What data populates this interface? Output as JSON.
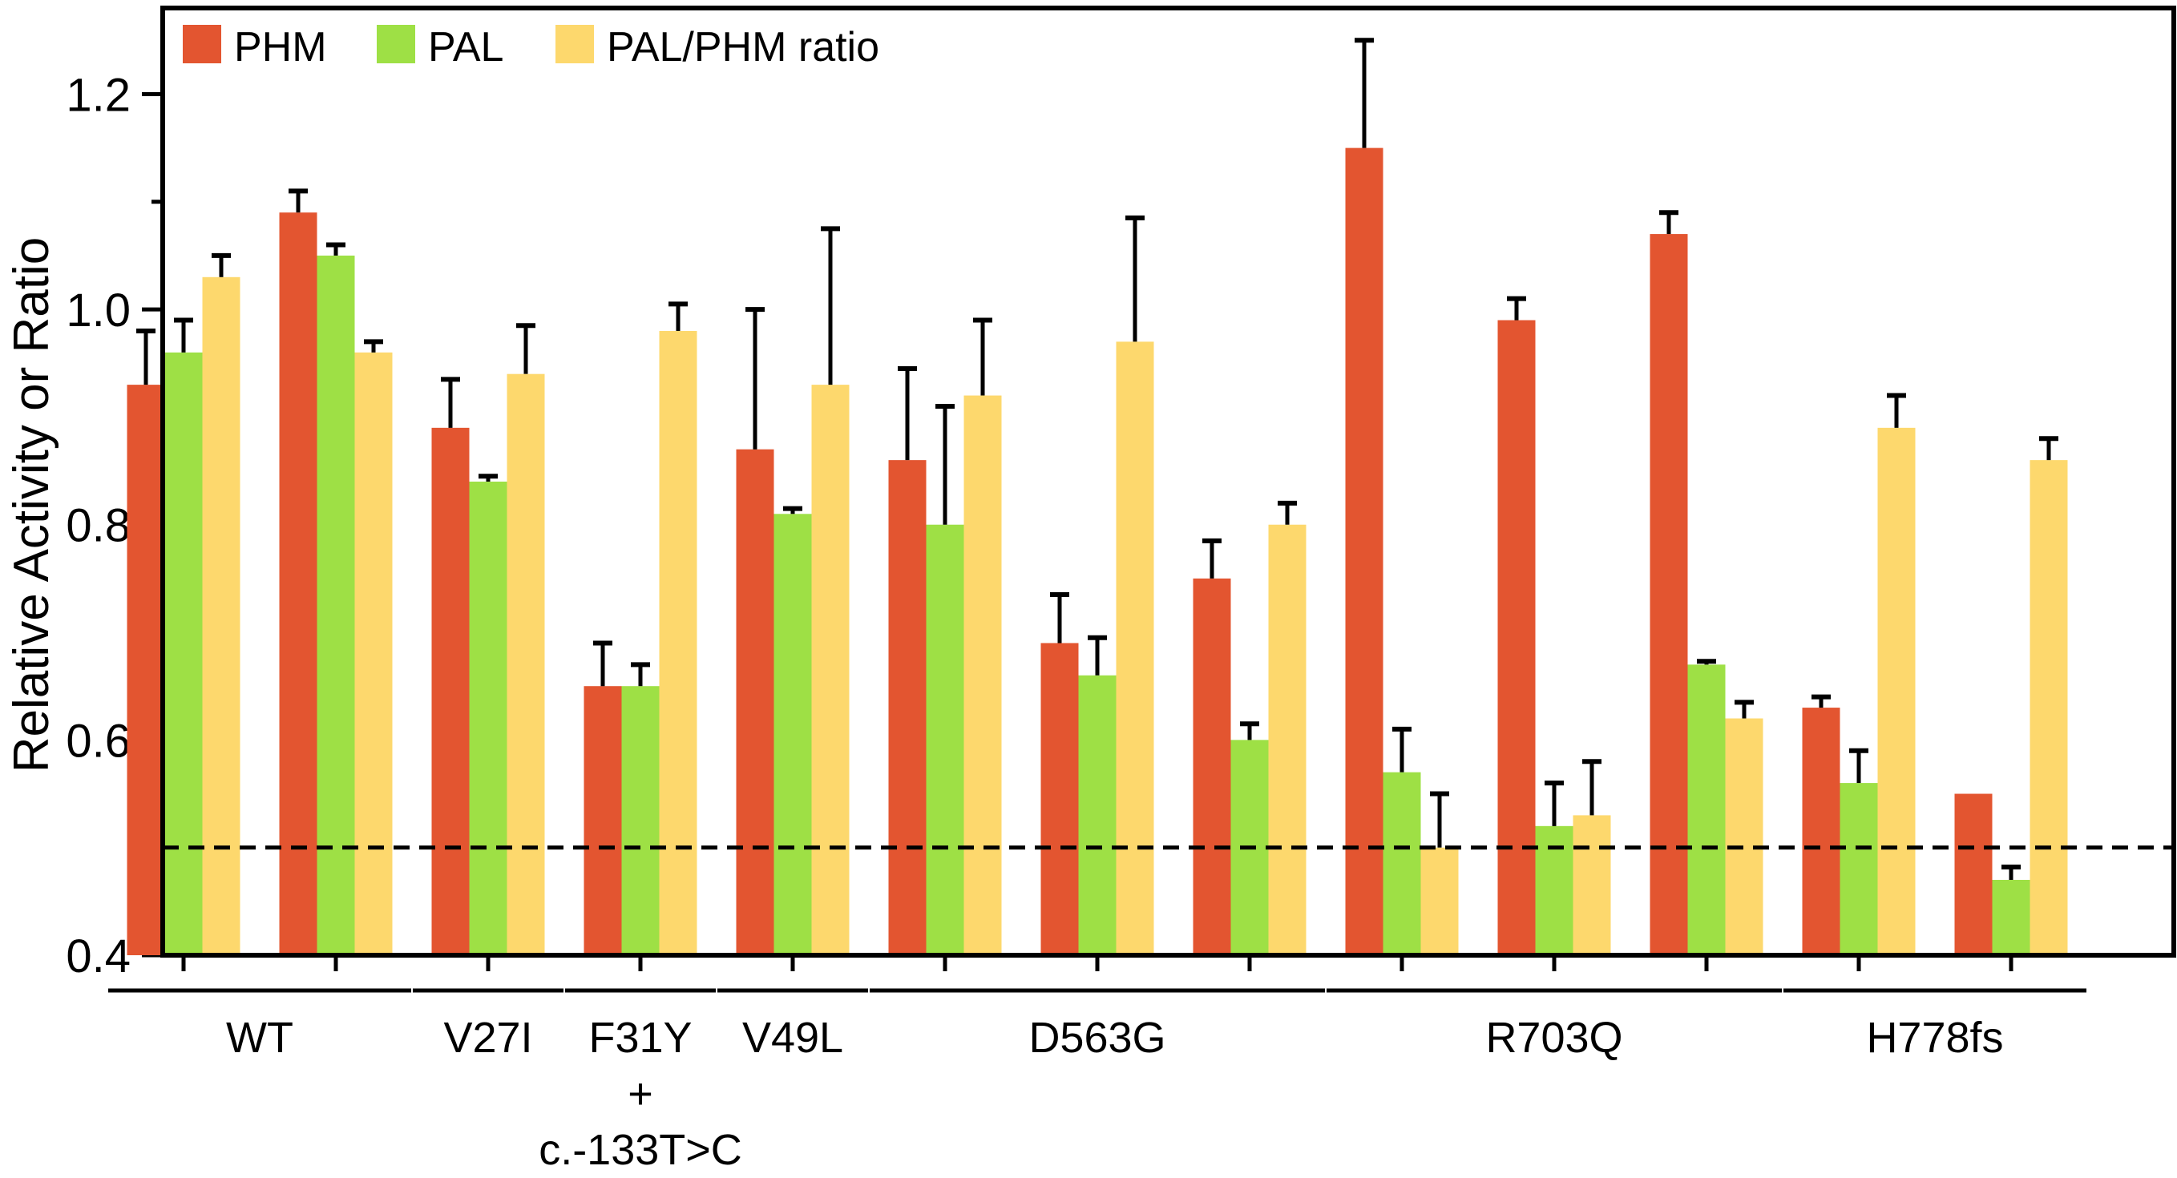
{
  "chart_data": {
    "type": "bar",
    "title": "",
    "xlabel": "",
    "ylabel": "Relative Activity or Ratio",
    "ylim": [
      0.4,
      1.28
    ],
    "yticks": [
      "0.4",
      "0.6",
      "0.8",
      "1.0",
      "1.2"
    ],
    "yticks_values": [
      0.4,
      0.6,
      0.8,
      1.0,
      1.2
    ],
    "reference_line": 0.5,
    "legend_position": "top-left",
    "series": [
      {
        "name": "PHM",
        "color": "#e35530"
      },
      {
        "name": "PAL",
        "color": "#9ee045"
      },
      {
        "name": "PAL/PHM ratio",
        "color": "#fdd86d"
      }
    ],
    "samples": [
      {
        "group": "WT",
        "values": [
          0.93,
          0.96,
          1.03
        ],
        "errors": [
          0.05,
          0.03,
          0.02
        ]
      },
      {
        "group": "WT",
        "values": [
          1.09,
          1.05,
          0.96
        ],
        "errors": [
          0.02,
          0.01,
          0.01
        ]
      },
      {
        "group": "V27I",
        "values": [
          0.89,
          0.84,
          0.94
        ],
        "errors": [
          0.045,
          0.005,
          0.045
        ]
      },
      {
        "group": "F31Y + c.-133T>C",
        "values": [
          0.65,
          0.65,
          0.98
        ],
        "errors": [
          0.04,
          0.02,
          0.025
        ]
      },
      {
        "group": "V49L",
        "values": [
          0.87,
          0.81,
          0.93
        ],
        "errors": [
          0.13,
          0.005,
          0.145
        ]
      },
      {
        "group": "D563G",
        "values": [
          0.86,
          0.8,
          0.92
        ],
        "errors": [
          0.085,
          0.11,
          0.07
        ]
      },
      {
        "group": "D563G",
        "values": [
          0.69,
          0.66,
          0.97
        ],
        "errors": [
          0.045,
          0.035,
          0.115
        ]
      },
      {
        "group": "D563G",
        "values": [
          0.75,
          0.6,
          0.8
        ],
        "errors": [
          0.035,
          0.015,
          0.02
        ]
      },
      {
        "group": "R703Q",
        "values": [
          1.15,
          0.57,
          0.5
        ],
        "errors": [
          0.1,
          0.04,
          0.05
        ]
      },
      {
        "group": "R703Q",
        "values": [
          0.99,
          0.52,
          0.53
        ],
        "errors": [
          0.02,
          0.04,
          0.05
        ]
      },
      {
        "group": "R703Q",
        "values": [
          1.07,
          0.67,
          0.62
        ],
        "errors": [
          0.02,
          0.003,
          0.015
        ]
      },
      {
        "group": "H778fs",
        "values": [
          0.63,
          0.56,
          0.89
        ],
        "errors": [
          0.01,
          0.03,
          0.03
        ]
      },
      {
        "group": "H778fs",
        "values": [
          0.55,
          0.47,
          0.86
        ],
        "errors": [
          0.0,
          0.012,
          0.02
        ]
      }
    ],
    "group_labels": [
      {
        "lines": [
          "WT"
        ],
        "start_sample": 0,
        "end_sample": 1
      },
      {
        "lines": [
          "V27I"
        ],
        "start_sample": 2,
        "end_sample": 2
      },
      {
        "lines": [
          "F31Y",
          "+",
          "c.-133T>C"
        ],
        "start_sample": 3,
        "end_sample": 3
      },
      {
        "lines": [
          "V49L"
        ],
        "start_sample": 4,
        "end_sample": 4
      },
      {
        "lines": [
          "D563G"
        ],
        "start_sample": 5,
        "end_sample": 7
      },
      {
        "lines": [
          "R703Q"
        ],
        "start_sample": 8,
        "end_sample": 10
      },
      {
        "lines": [
          "H778fs"
        ],
        "start_sample": 11,
        "end_sample": 12
      }
    ]
  }
}
